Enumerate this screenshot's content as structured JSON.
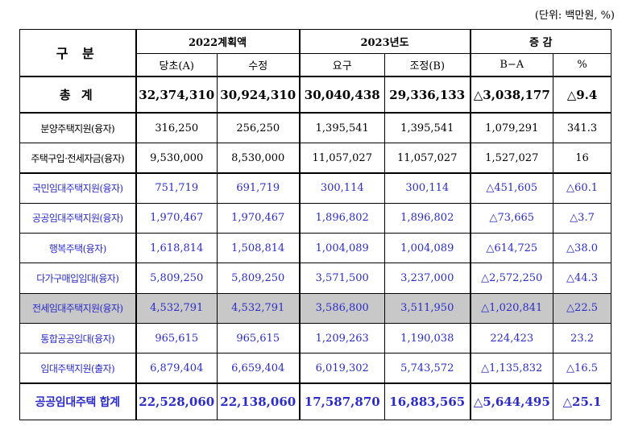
{
  "unit_note": "(단위: 백만원, %)",
  "header": {
    "gubun": "구 분",
    "plan2022": "2022계획액",
    "y2023": "2023년도",
    "change": "증 감",
    "sub": [
      "당초(A)",
      "수정",
      "요구",
      "조정(B)",
      "B−A",
      "%"
    ]
  },
  "rows": [
    {
      "label": "총 계",
      "cells": [
        "32,374,310",
        "30,924,310",
        "30,040,438",
        "29,336,133",
        "△3,038,177",
        "△9.4"
      ]
    },
    {
      "label": "분양주택지원(융자)",
      "cells": [
        "316,250",
        "256,250",
        "1,395,541",
        "1,395,541",
        "1,079,291",
        "341.3"
      ]
    },
    {
      "label": "주택구입·전세자금(융자)",
      "cells": [
        "9,530,000",
        "8,530,000",
        "11,057,027",
        "11,057,027",
        "1,527,027",
        "16"
      ]
    },
    {
      "label": "국민임대주택지원(융자)",
      "cells": [
        "751,719",
        "691,719",
        "300,114",
        "300,114",
        "△451,605",
        "△60.1"
      ]
    },
    {
      "label": "공공임대주택지원(융자)",
      "cells": [
        "1,970,467",
        "1,970,467",
        "1,896,802",
        "1,896,802",
        "△73,665",
        "△3.7"
      ]
    },
    {
      "label": "행복주택(융자)",
      "cells": [
        "1,618,814",
        "1,508,814",
        "1,004,089",
        "1,004,089",
        "△614,725",
        "△38.0"
      ]
    },
    {
      "label": "다가구매입임대(융자)",
      "cells": [
        "5,809,250",
        "5,809,250",
        "3,571,500",
        "3,237,000",
        "△2,572,250",
        "△44.3"
      ]
    },
    {
      "label": "전세임대주택지원(융자)",
      "cells": [
        "4,532,791",
        "4,532,791",
        "3,586,800",
        "3,511,950",
        "△1,020,841",
        "△22.5"
      ]
    },
    {
      "label": "통합공공임대(융자)",
      "cells": [
        "965,615",
        "965,615",
        "1,209,263",
        "1,190,038",
        "224,423",
        "23.2"
      ]
    },
    {
      "label": "임대주택지원(출자)",
      "cells": [
        "6,879,404",
        "6,659,404",
        "6,019,302",
        "5,743,572",
        "△1,135,832",
        "△16.5"
      ]
    },
    {
      "label": "공공임대주택 합계",
      "cells": [
        "22,528,060",
        "22,138,060",
        "17,587,870",
        "16,883,565",
        "△5,644,495",
        "△25.1"
      ]
    }
  ],
  "colors": {
    "highlight_row": "#c8c8c8",
    "blue_text": "#2c2cc8"
  }
}
